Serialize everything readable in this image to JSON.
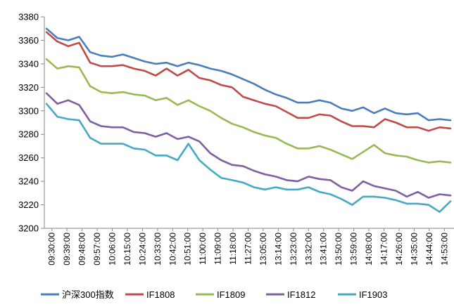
{
  "chart_data": {
    "type": "line",
    "title": "",
    "xlabel": "",
    "ylabel": "",
    "ylim": [
      3200,
      3380
    ],
    "yticks": [
      3200,
      3220,
      3240,
      3260,
      3280,
      3300,
      3320,
      3340,
      3360,
      3380
    ],
    "grid": false,
    "legend": "bottom",
    "x_tick_labels": [
      "09:30:00",
      "09:39:00",
      "09:48:00",
      "09:57:00",
      "10:06:00",
      "10:15:00",
      "10:24:00",
      "10:33:00",
      "10:42:00",
      "10:51:00",
      "11:00:00",
      "11:09:00",
      "11:18:00",
      "11:27:00",
      "13:05:00",
      "13:14:00",
      "13:23:00",
      "13:32:00",
      "13:41:00",
      "13:50:00",
      "13:59:00",
      "14:08:00",
      "14:17:00",
      "14:26:00",
      "14:35:00",
      "14:44:00",
      "14:53:00"
    ],
    "series": [
      {
        "name": "沪深300指数",
        "color": "#4a7ebb",
        "values": [
          3370,
          3362,
          3360,
          3363,
          3350,
          3347,
          3346,
          3348,
          3345,
          3342,
          3340,
          3341,
          3338,
          3341,
          3339,
          3336,
          3334,
          3331,
          3327,
          3323,
          3318,
          3314,
          3311,
          3307,
          3307,
          3309,
          3307,
          3302,
          3300,
          3303,
          3298,
          3302,
          3298,
          3297,
          3298,
          3292,
          3293,
          3292
        ]
      },
      {
        "name": "IF1808",
        "color": "#be4b48",
        "values": [
          3367,
          3359,
          3355,
          3358,
          3341,
          3338,
          3338,
          3339,
          3336,
          3334,
          3330,
          3336,
          3330,
          3335,
          3328,
          3326,
          3322,
          3320,
          3312,
          3309,
          3306,
          3304,
          3299,
          3294,
          3294,
          3297,
          3296,
          3291,
          3287,
          3287,
          3286,
          3293,
          3290,
          3286,
          3286,
          3283,
          3286,
          3285
        ]
      },
      {
        "name": "IF1809",
        "color": "#98b954",
        "values": [
          3344,
          3336,
          3338,
          3337,
          3321,
          3316,
          3315,
          3316,
          3314,
          3313,
          3309,
          3311,
          3305,
          3309,
          3304,
          3300,
          3294,
          3289,
          3286,
          3282,
          3279,
          3277,
          3272,
          3268,
          3268,
          3270,
          3267,
          3263,
          3259,
          3265,
          3271,
          3264,
          3262,
          3261,
          3258,
          3256,
          3257,
          3256
        ]
      },
      {
        "name": "IF1812",
        "color": "#7d60a0",
        "values": [
          3315,
          3306,
          3309,
          3305,
          3291,
          3287,
          3286,
          3286,
          3282,
          3281,
          3278,
          3281,
          3276,
          3278,
          3274,
          3264,
          3258,
          3254,
          3253,
          3249,
          3246,
          3244,
          3241,
          3240,
          3244,
          3242,
          3241,
          3235,
          3232,
          3240,
          3236,
          3234,
          3232,
          3227,
          3231,
          3226,
          3229,
          3228
        ]
      },
      {
        "name": "IF1903",
        "color": "#46aac5",
        "values": [
          3306,
          3295,
          3293,
          3292,
          3277,
          3272,
          3272,
          3272,
          3268,
          3267,
          3262,
          3262,
          3258,
          3272,
          3258,
          3250,
          3243,
          3241,
          3239,
          3235,
          3233,
          3235,
          3233,
          3233,
          3235,
          3231,
          3229,
          3225,
          3220,
          3227,
          3227,
          3226,
          3224,
          3221,
          3221,
          3220,
          3214,
          3223
        ]
      }
    ]
  }
}
